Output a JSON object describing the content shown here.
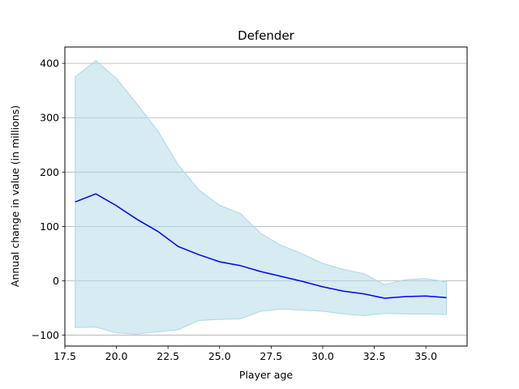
{
  "chart_data": {
    "type": "line",
    "title": "Defender",
    "xlabel": "Player age",
    "ylabel": "Annual change in value (in millions)",
    "xlim": [
      17.5,
      37
    ],
    "ylim": [
      -120,
      430
    ],
    "x_ticks": [
      17.5,
      20.0,
      22.5,
      25.0,
      27.5,
      30.0,
      32.5,
      35.0
    ],
    "x_tick_labels": [
      "17.5",
      "20.0",
      "22.5",
      "25.0",
      "27.5",
      "30.0",
      "32.5",
      "35.0"
    ],
    "y_ticks": [
      -100,
      0,
      100,
      200,
      300,
      400
    ],
    "y_tick_labels": [
      "−100",
      "0",
      "100",
      "200",
      "300",
      "400"
    ],
    "grid": "horizontal",
    "x": [
      18,
      19,
      20,
      21,
      22,
      23,
      24,
      25,
      26,
      27,
      28,
      29,
      30,
      31,
      32,
      33,
      34,
      35,
      36
    ],
    "series": [
      {
        "values": [
          145,
          160,
          138,
          113,
          91,
          63,
          48,
          35,
          28,
          17,
          8,
          -1,
          -11,
          -19,
          -24,
          -32,
          -29,
          -28,
          -31
        ],
        "color": "#0000ff"
      }
    ],
    "band": {
      "lower": [
        -86,
        -85,
        -96,
        -98,
        -94,
        -90,
        -73,
        -71,
        -70,
        -56,
        -52,
        -54,
        -56,
        -61,
        -64,
        -60,
        -61,
        -61,
        -62
      ],
      "upper": [
        375,
        405,
        372,
        325,
        276,
        213,
        167,
        139,
        124,
        87,
        65,
        50,
        32,
        21,
        13,
        -7,
        2,
        4,
        -2
      ],
      "color": "#add8e6"
    }
  }
}
